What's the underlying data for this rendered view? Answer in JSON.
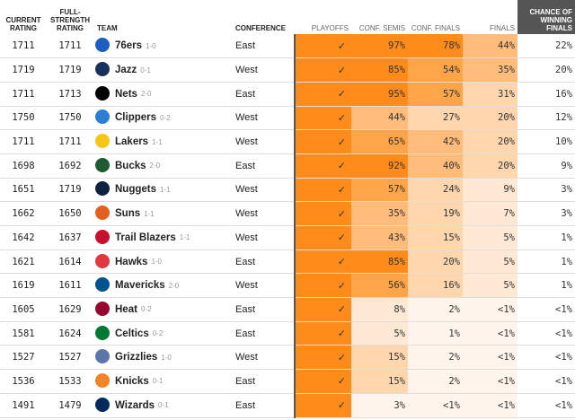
{
  "headers": {
    "current_rating": "CURRENT RATING",
    "full_strength": "FULL-STRENGTH RATING",
    "team": "TEAM",
    "conference": "CONFERENCE",
    "playoffs": "PLAYOFFS",
    "conf_semis": "CONF. SEMIS",
    "conf_finals": "CONF. FINALS",
    "finals": "FINALS",
    "win_finals": "CHANCE OF WINNING FINALS"
  },
  "colors": {
    "orange_strong": "#ff8c1a",
    "orange_heavy": "#ffa447",
    "orange_mid": "#ffbc7a",
    "orange_light": "#ffd6ad",
    "orange_pale": "#ffe9d4",
    "orange_faint": "#fff5ec",
    "header_dark": "#555555"
  },
  "rows": [
    {
      "current": "1711",
      "full": "1711",
      "team": "76ers",
      "record": "1-0",
      "conf": "East",
      "playoffs": "✓",
      "semis": "97%",
      "cfinals": "78%",
      "finals": "44%",
      "win": "22%",
      "logo_color": "#1d5fc0",
      "logo_icon": "76ers-logo-icon"
    },
    {
      "current": "1719",
      "full": "1719",
      "team": "Jazz",
      "record": "0-1",
      "conf": "West",
      "playoffs": "✓",
      "semis": "85%",
      "cfinals": "54%",
      "finals": "35%",
      "win": "20%",
      "logo_color": "#16325c",
      "logo_icon": "jazz-logo-icon"
    },
    {
      "current": "1711",
      "full": "1713",
      "team": "Nets",
      "record": "2-0",
      "conf": "East",
      "playoffs": "✓",
      "semis": "95%",
      "cfinals": "57%",
      "finals": "31%",
      "win": "16%",
      "logo_color": "#000000",
      "logo_icon": "nets-logo-icon"
    },
    {
      "current": "1750",
      "full": "1750",
      "team": "Clippers",
      "record": "0-2",
      "conf": "West",
      "playoffs": "✓",
      "semis": "44%",
      "cfinals": "27%",
      "finals": "20%",
      "win": "12%",
      "logo_color": "#2a7fd4",
      "logo_icon": "clippers-logo-icon"
    },
    {
      "current": "1711",
      "full": "1711",
      "team": "Lakers",
      "record": "1-1",
      "conf": "West",
      "playoffs": "✓",
      "semis": "65%",
      "cfinals": "42%",
      "finals": "20%",
      "win": "10%",
      "logo_color": "#f6c518",
      "logo_icon": "lakers-logo-icon"
    },
    {
      "current": "1698",
      "full": "1692",
      "team": "Bucks",
      "record": "2-0",
      "conf": "East",
      "playoffs": "✓",
      "semis": "92%",
      "cfinals": "40%",
      "finals": "20%",
      "win": "9%",
      "logo_color": "#1e5a32",
      "logo_icon": "bucks-logo-icon"
    },
    {
      "current": "1651",
      "full": "1719",
      "team": "Nuggets",
      "record": "1-1",
      "conf": "West",
      "playoffs": "✓",
      "semis": "57%",
      "cfinals": "24%",
      "finals": "9%",
      "win": "3%",
      "logo_color": "#0e2240",
      "logo_icon": "nuggets-logo-icon"
    },
    {
      "current": "1662",
      "full": "1650",
      "team": "Suns",
      "record": "1-1",
      "conf": "West",
      "playoffs": "✓",
      "semis": "35%",
      "cfinals": "19%",
      "finals": "7%",
      "win": "3%",
      "logo_color": "#e56020",
      "logo_icon": "suns-logo-icon"
    },
    {
      "current": "1642",
      "full": "1637",
      "team": "Trail Blazers",
      "record": "1-1",
      "conf": "West",
      "playoffs": "✓",
      "semis": "43%",
      "cfinals": "15%",
      "finals": "5%",
      "win": "1%",
      "logo_color": "#c8102e",
      "logo_icon": "trail-blazers-logo-icon"
    },
    {
      "current": "1621",
      "full": "1614",
      "team": "Hawks",
      "record": "1-0",
      "conf": "East",
      "playoffs": "✓",
      "semis": "85%",
      "cfinals": "20%",
      "finals": "5%",
      "win": "1%",
      "logo_color": "#e03a3e",
      "logo_icon": "hawks-logo-icon"
    },
    {
      "current": "1619",
      "full": "1611",
      "team": "Mavericks",
      "record": "2-0",
      "conf": "West",
      "playoffs": "✓",
      "semis": "56%",
      "cfinals": "16%",
      "finals": "5%",
      "win": "1%",
      "logo_color": "#00538c",
      "logo_icon": "mavericks-logo-icon"
    },
    {
      "current": "1605",
      "full": "1629",
      "team": "Heat",
      "record": "0-2",
      "conf": "East",
      "playoffs": "✓",
      "semis": "8%",
      "cfinals": "2%",
      "finals": "<1%",
      "win": "<1%",
      "logo_color": "#98002e",
      "logo_icon": "heat-logo-icon"
    },
    {
      "current": "1581",
      "full": "1624",
      "team": "Celtics",
      "record": "0-2",
      "conf": "East",
      "playoffs": "✓",
      "semis": "5%",
      "cfinals": "1%",
      "finals": "<1%",
      "win": "<1%",
      "logo_color": "#007a33",
      "logo_icon": "celtics-logo-icon"
    },
    {
      "current": "1527",
      "full": "1527",
      "team": "Grizzlies",
      "record": "1-0",
      "conf": "West",
      "playoffs": "✓",
      "semis": "15%",
      "cfinals": "2%",
      "finals": "<1%",
      "win": "<1%",
      "logo_color": "#5d76a9",
      "logo_icon": "grizzlies-logo-icon"
    },
    {
      "current": "1536",
      "full": "1533",
      "team": "Knicks",
      "record": "0-1",
      "conf": "East",
      "playoffs": "✓",
      "semis": "15%",
      "cfinals": "2%",
      "finals": "<1%",
      "win": "<1%",
      "logo_color": "#f58426",
      "logo_icon": "knicks-logo-icon"
    },
    {
      "current": "1491",
      "full": "1479",
      "team": "Wizards",
      "record": "0-1",
      "conf": "East",
      "playoffs": "✓",
      "semis": "3%",
      "cfinals": "<1%",
      "finals": "<1%",
      "win": "<1%",
      "logo_color": "#002b5c",
      "logo_icon": "wizards-logo-icon"
    }
  ]
}
